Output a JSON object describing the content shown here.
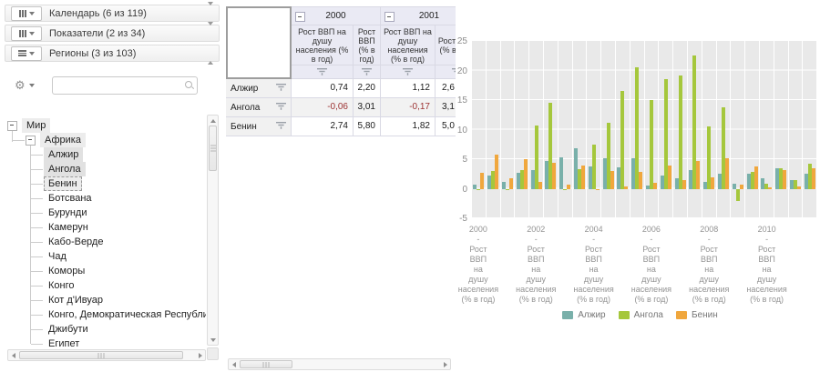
{
  "left_panel": {
    "panels": [
      {
        "label": "Календарь (6 из 119)",
        "icon": "columns-icon",
        "collapsed": true
      },
      {
        "label": "Показатели (2 из 34)",
        "icon": "columns-icon",
        "collapsed": true
      },
      {
        "label": "Регионы (3 из 103)",
        "icon": "rows-icon",
        "collapsed": false
      }
    ],
    "search": {
      "value": "",
      "placeholder": ""
    },
    "tree": [
      {
        "label": "Мир",
        "depth": 0,
        "expander": true,
        "state": "path"
      },
      {
        "label": "Африка",
        "depth": 1,
        "expander": true,
        "state": "path"
      },
      {
        "label": "Алжир",
        "depth": 2,
        "state": "selected"
      },
      {
        "label": "Ангола",
        "depth": 2,
        "state": "selected"
      },
      {
        "label": "Бенин",
        "depth": 2,
        "state": "focused"
      },
      {
        "label": "Ботсвана",
        "depth": 2
      },
      {
        "label": "Бурунди",
        "depth": 2
      },
      {
        "label": "Камерун",
        "depth": 2
      },
      {
        "label": "Кабо-Верде",
        "depth": 2
      },
      {
        "label": "Чад",
        "depth": 2
      },
      {
        "label": "Коморы",
        "depth": 2
      },
      {
        "label": "Конго",
        "depth": 2
      },
      {
        "label": "Кот д'Ивуар",
        "depth": 2
      },
      {
        "label": "Конго, Демократическая Республика",
        "depth": 2
      },
      {
        "label": "Джибути",
        "depth": 2
      },
      {
        "label": "Египет",
        "depth": 2
      }
    ]
  },
  "table": {
    "corner": "",
    "year_groups": [
      "2000",
      "2001"
    ],
    "sub_columns": [
      "Рост ВВП на душу населения (% в год)",
      "Рост ВВП (% в год)",
      "Рост ВВП на душу населения (% в год)",
      "Рост ВВП (% в год)"
    ],
    "rows": [
      {
        "name": "Алжир",
        "values": [
          "0,74",
          "2,20",
          "1,12",
          "2,6"
        ]
      },
      {
        "name": "Ангола",
        "values": [
          "-0,06",
          "3,01",
          "-0,17",
          "3,1"
        ]
      },
      {
        "name": "Бенин",
        "values": [
          "2,74",
          "5,80",
          "1,82",
          "5,0"
        ]
      }
    ]
  },
  "chart_data": {
    "type": "bar",
    "title": "",
    "xlabel": "",
    "ylabel": "",
    "ylim": [
      -5,
      25
    ],
    "yticks": [
      25,
      20,
      15,
      10,
      5,
      0,
      -5
    ],
    "grid": true,
    "plot_bg": "#e9e9e9",
    "legend_position": "bottom",
    "indicators": [
      "Рост ВВП на душу населения (% в год)",
      "Рост ВВП (% в год)"
    ],
    "x_tick_lines": [
      "-",
      "Рост",
      "ВВП",
      "на",
      "душу",
      "населения",
      "(% в год)"
    ],
    "series": [
      {
        "name": "Алжир",
        "color": "#79b0aa"
      },
      {
        "name": "Ангола",
        "color": "#a5c73c"
      },
      {
        "name": "Бенин",
        "color": "#f0a73d"
      }
    ],
    "groups": [
      {
        "year": 2000,
        "ind": 0,
        "tick": true,
        "values": [
          0.74,
          -0.06,
          2.74
        ]
      },
      {
        "year": 2000,
        "ind": 1,
        "tick": false,
        "values": [
          2.2,
          3.01,
          5.8
        ]
      },
      {
        "year": 2001,
        "ind": 0,
        "tick": false,
        "values": [
          1.12,
          -0.17,
          1.82
        ]
      },
      {
        "year": 2001,
        "ind": 1,
        "tick": false,
        "values": [
          2.64,
          3.14,
          5.05
        ]
      },
      {
        "year": 2002,
        "ind": 0,
        "tick": true,
        "values": [
          3.2,
          10.7,
          1.2
        ]
      },
      {
        "year": 2002,
        "ind": 1,
        "tick": false,
        "values": [
          4.7,
          14.5,
          4.4
        ]
      },
      {
        "year": 2003,
        "ind": 0,
        "tick": false,
        "values": [
          5.3,
          -0.3,
          0.7
        ]
      },
      {
        "year": 2003,
        "ind": 1,
        "tick": false,
        "values": [
          6.9,
          3.3,
          4.0
        ]
      },
      {
        "year": 2004,
        "ind": 0,
        "tick": true,
        "values": [
          3.7,
          7.5,
          -0.2
        ]
      },
      {
        "year": 2004,
        "ind": 1,
        "tick": false,
        "values": [
          5.2,
          11.2,
          3.0
        ]
      },
      {
        "year": 2005,
        "ind": 0,
        "tick": false,
        "values": [
          3.6,
          16.6,
          0.4
        ]
      },
      {
        "year": 2005,
        "ind": 1,
        "tick": false,
        "values": [
          5.1,
          20.6,
          2.9
        ]
      },
      {
        "year": 2006,
        "ind": 0,
        "tick": true,
        "values": [
          0.6,
          15.0,
          1.0
        ]
      },
      {
        "year": 2006,
        "ind": 1,
        "tick": false,
        "values": [
          2.2,
          18.6,
          3.9
        ]
      },
      {
        "year": 2007,
        "ind": 0,
        "tick": false,
        "values": [
          1.8,
          19.2,
          1.5
        ]
      },
      {
        "year": 2007,
        "ind": 1,
        "tick": false,
        "values": [
          3.2,
          22.6,
          4.7
        ]
      },
      {
        "year": 2008,
        "ind": 0,
        "tick": true,
        "values": [
          1.1,
          10.5,
          2.0
        ]
      },
      {
        "year": 2008,
        "ind": 1,
        "tick": false,
        "values": [
          2.6,
          13.8,
          5.2
        ]
      },
      {
        "year": 2009,
        "ind": 0,
        "tick": false,
        "values": [
          0.9,
          -2.0,
          0.7
        ]
      },
      {
        "year": 2009,
        "ind": 1,
        "tick": false,
        "values": [
          2.6,
          2.9,
          3.8
        ]
      },
      {
        "year": 2010,
        "ind": 0,
        "tick": true,
        "values": [
          1.8,
          0.8,
          0.3
        ]
      },
      {
        "year": 2010,
        "ind": 1,
        "tick": false,
        "values": [
          3.5,
          3.5,
          3.2
        ]
      },
      {
        "year": 2011,
        "ind": 0,
        "tick": false,
        "values": [
          1.4,
          1.5,
          0.4
        ]
      },
      {
        "year": 2011,
        "ind": 1,
        "tick": false,
        "values": [
          2.5,
          4.2,
          3.5
        ]
      }
    ]
  }
}
